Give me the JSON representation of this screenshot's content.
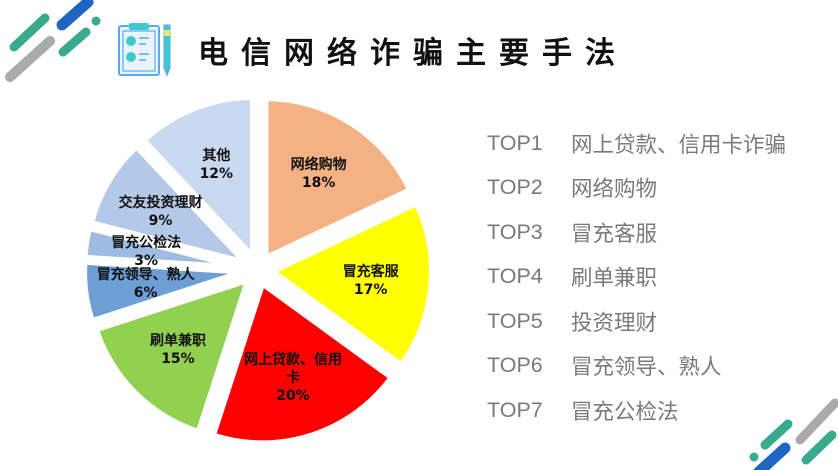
{
  "header": {
    "title": "电信网络诈骗主要手法",
    "icon": "clipboard-pen-icon"
  },
  "legend": {
    "items": [
      {
        "rank": "TOP1",
        "label": "网上贷款、信用卡诈骗"
      },
      {
        "rank": "TOP2",
        "label": "网络购物"
      },
      {
        "rank": "TOP3",
        "label": "冒充客服"
      },
      {
        "rank": "TOP4",
        "label": "刷单兼职"
      },
      {
        "rank": "TOP5",
        "label": "投资理财"
      },
      {
        "rank": "TOP6",
        "label": "冒充领导、熟人"
      },
      {
        "rank": "TOP7",
        "label": "冒充公检法"
      }
    ]
  },
  "colors": {
    "teal": "#3aaa8e",
    "blue": "#1f66c2",
    "gray": "#aaaaaa",
    "legend_text": "#7a7a7a"
  },
  "chart_data": {
    "type": "pie",
    "title": "电信网络诈骗主要手法",
    "exploded": true,
    "start_angle": "12 o'clock, clockwise",
    "categories": [
      "网络购物",
      "冒充客服",
      "网上贷款、信用卡",
      "刷单兼职",
      "冒充领导、熟人",
      "冒充公检法",
      "交友投资理财",
      "其他"
    ],
    "values": [
      18,
      17,
      20,
      15,
      6,
      3,
      9,
      12
    ],
    "labels": [
      "18%",
      "17%",
      "20%",
      "15%",
      "6%",
      "3%",
      "9%",
      "12%"
    ],
    "colors": [
      "#f4b183",
      "#ffff00",
      "#ff0000",
      "#92d050",
      "#6d9ed6",
      "#9dbbe3",
      "#b4c9e8",
      "#c9d9ef"
    ],
    "legend_position": "none (data labels inside slices)"
  },
  "slices": [
    {
      "name": "网络购物",
      "pct": "18%"
    },
    {
      "name": "冒充客服",
      "pct": "17%"
    },
    {
      "name": "网上贷款、信用\n卡",
      "line1": "网上贷款、信用",
      "line2": "卡",
      "pct": "20%"
    },
    {
      "name": "刷单兼职",
      "pct": "15%"
    },
    {
      "name": "冒充领导、熟人",
      "pct": "6%"
    },
    {
      "name": "冒充公检法",
      "pct": "3%"
    },
    {
      "name": "交友投资理财",
      "pct": "9%"
    },
    {
      "name": "其他",
      "pct": "12%"
    }
  ]
}
